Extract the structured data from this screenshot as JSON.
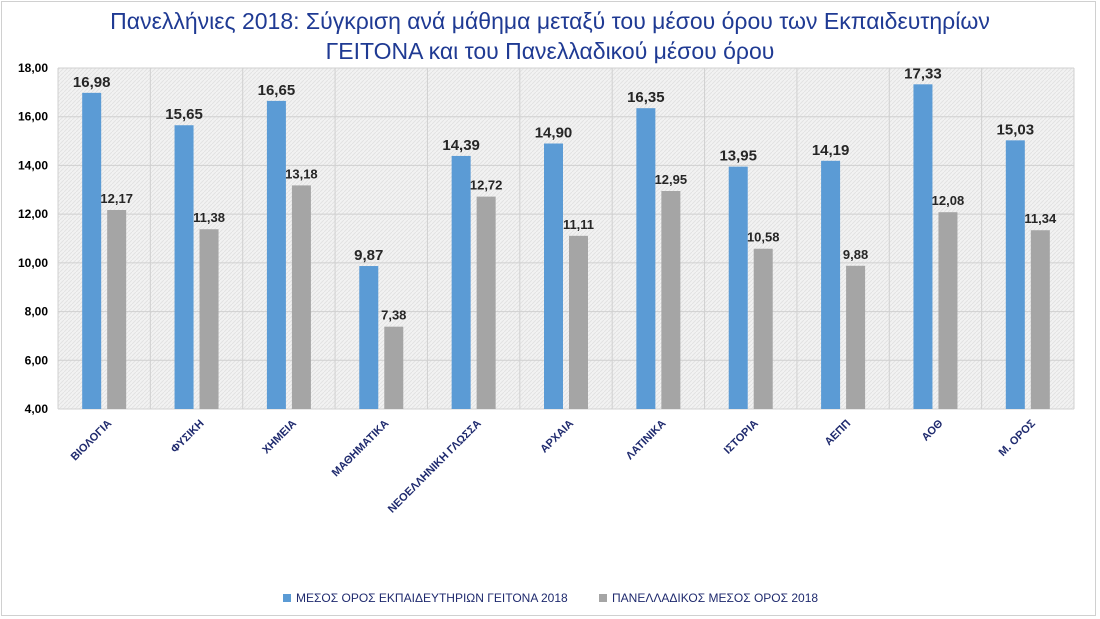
{
  "colors": {
    "series1": "#5b9bd5",
    "series2": "#a5a5a5",
    "title": "#1f3a93",
    "axis_text": "#1f2a6e"
  },
  "chart_data": {
    "type": "bar",
    "title_line1": "Πανελλήνιες 2018: Σύγκριση ανά μάθημα μεταξύ του μέσου όρου των Εκπαιδευτηρίων",
    "title_line2": "ΓΕΙΤΟΝΑ και του Πανελλαδικού μέσου όρου",
    "categories": [
      "ΒΙΟΛΟΓΙΑ",
      "ΦΥΣΙΚΗ",
      "ΧΗΜΕΙΑ",
      "ΜΑΘΗΜΑΤΙΚΑ",
      "ΝΕΟΕΛΛΗΝΙΚΗ ΓΛΩΣΣΑ",
      "ΑΡΧΑΙΑ",
      "ΛΑΤΙΝΙΚΑ",
      "ΙΣΤΟΡΙΑ",
      "ΑΕΠΠ",
      "ΑΟΘ",
      "Μ. ΟΡΟΣ"
    ],
    "series": [
      {
        "name": "ΜΕΣΟΣ ΟΡΟΣ ΕΚΠΑΙΔΕΥΤΗΡΙΩΝ ΓΕΙΤΟΝΑ  2018",
        "values": [
          16.98,
          15.65,
          16.65,
          9.87,
          14.39,
          14.9,
          16.35,
          13.95,
          14.19,
          17.33,
          15.03
        ],
        "labels": [
          "16,98",
          "15,65",
          "16,65",
          "9,87",
          "14,39",
          "14,90",
          "16,35",
          "13,95",
          "14,19",
          "17,33",
          "15,03"
        ]
      },
      {
        "name": "ΠΑΝΕΛΛΑΔΙΚΟΣ ΜΕΣΟΣ ΟΡΟΣ 2018",
        "values": [
          12.17,
          11.38,
          13.18,
          7.38,
          12.72,
          11.11,
          12.95,
          10.58,
          9.88,
          12.08,
          11.34
        ],
        "labels": [
          "12,17",
          "11,38",
          "13,18",
          "7,38",
          "12,72",
          "11,11",
          "12,95",
          "10,58",
          "9,88",
          "12,08",
          "11,34"
        ]
      }
    ],
    "yticks": [
      4,
      6,
      8,
      10,
      12,
      14,
      16,
      18
    ],
    "ytick_labels": [
      "4,00",
      "6,00",
      "8,00",
      "10,00",
      "12,00",
      "14,00",
      "16,00",
      "18,00"
    ],
    "ylim": [
      4,
      18
    ],
    "grid": true,
    "legend": "bottom"
  }
}
